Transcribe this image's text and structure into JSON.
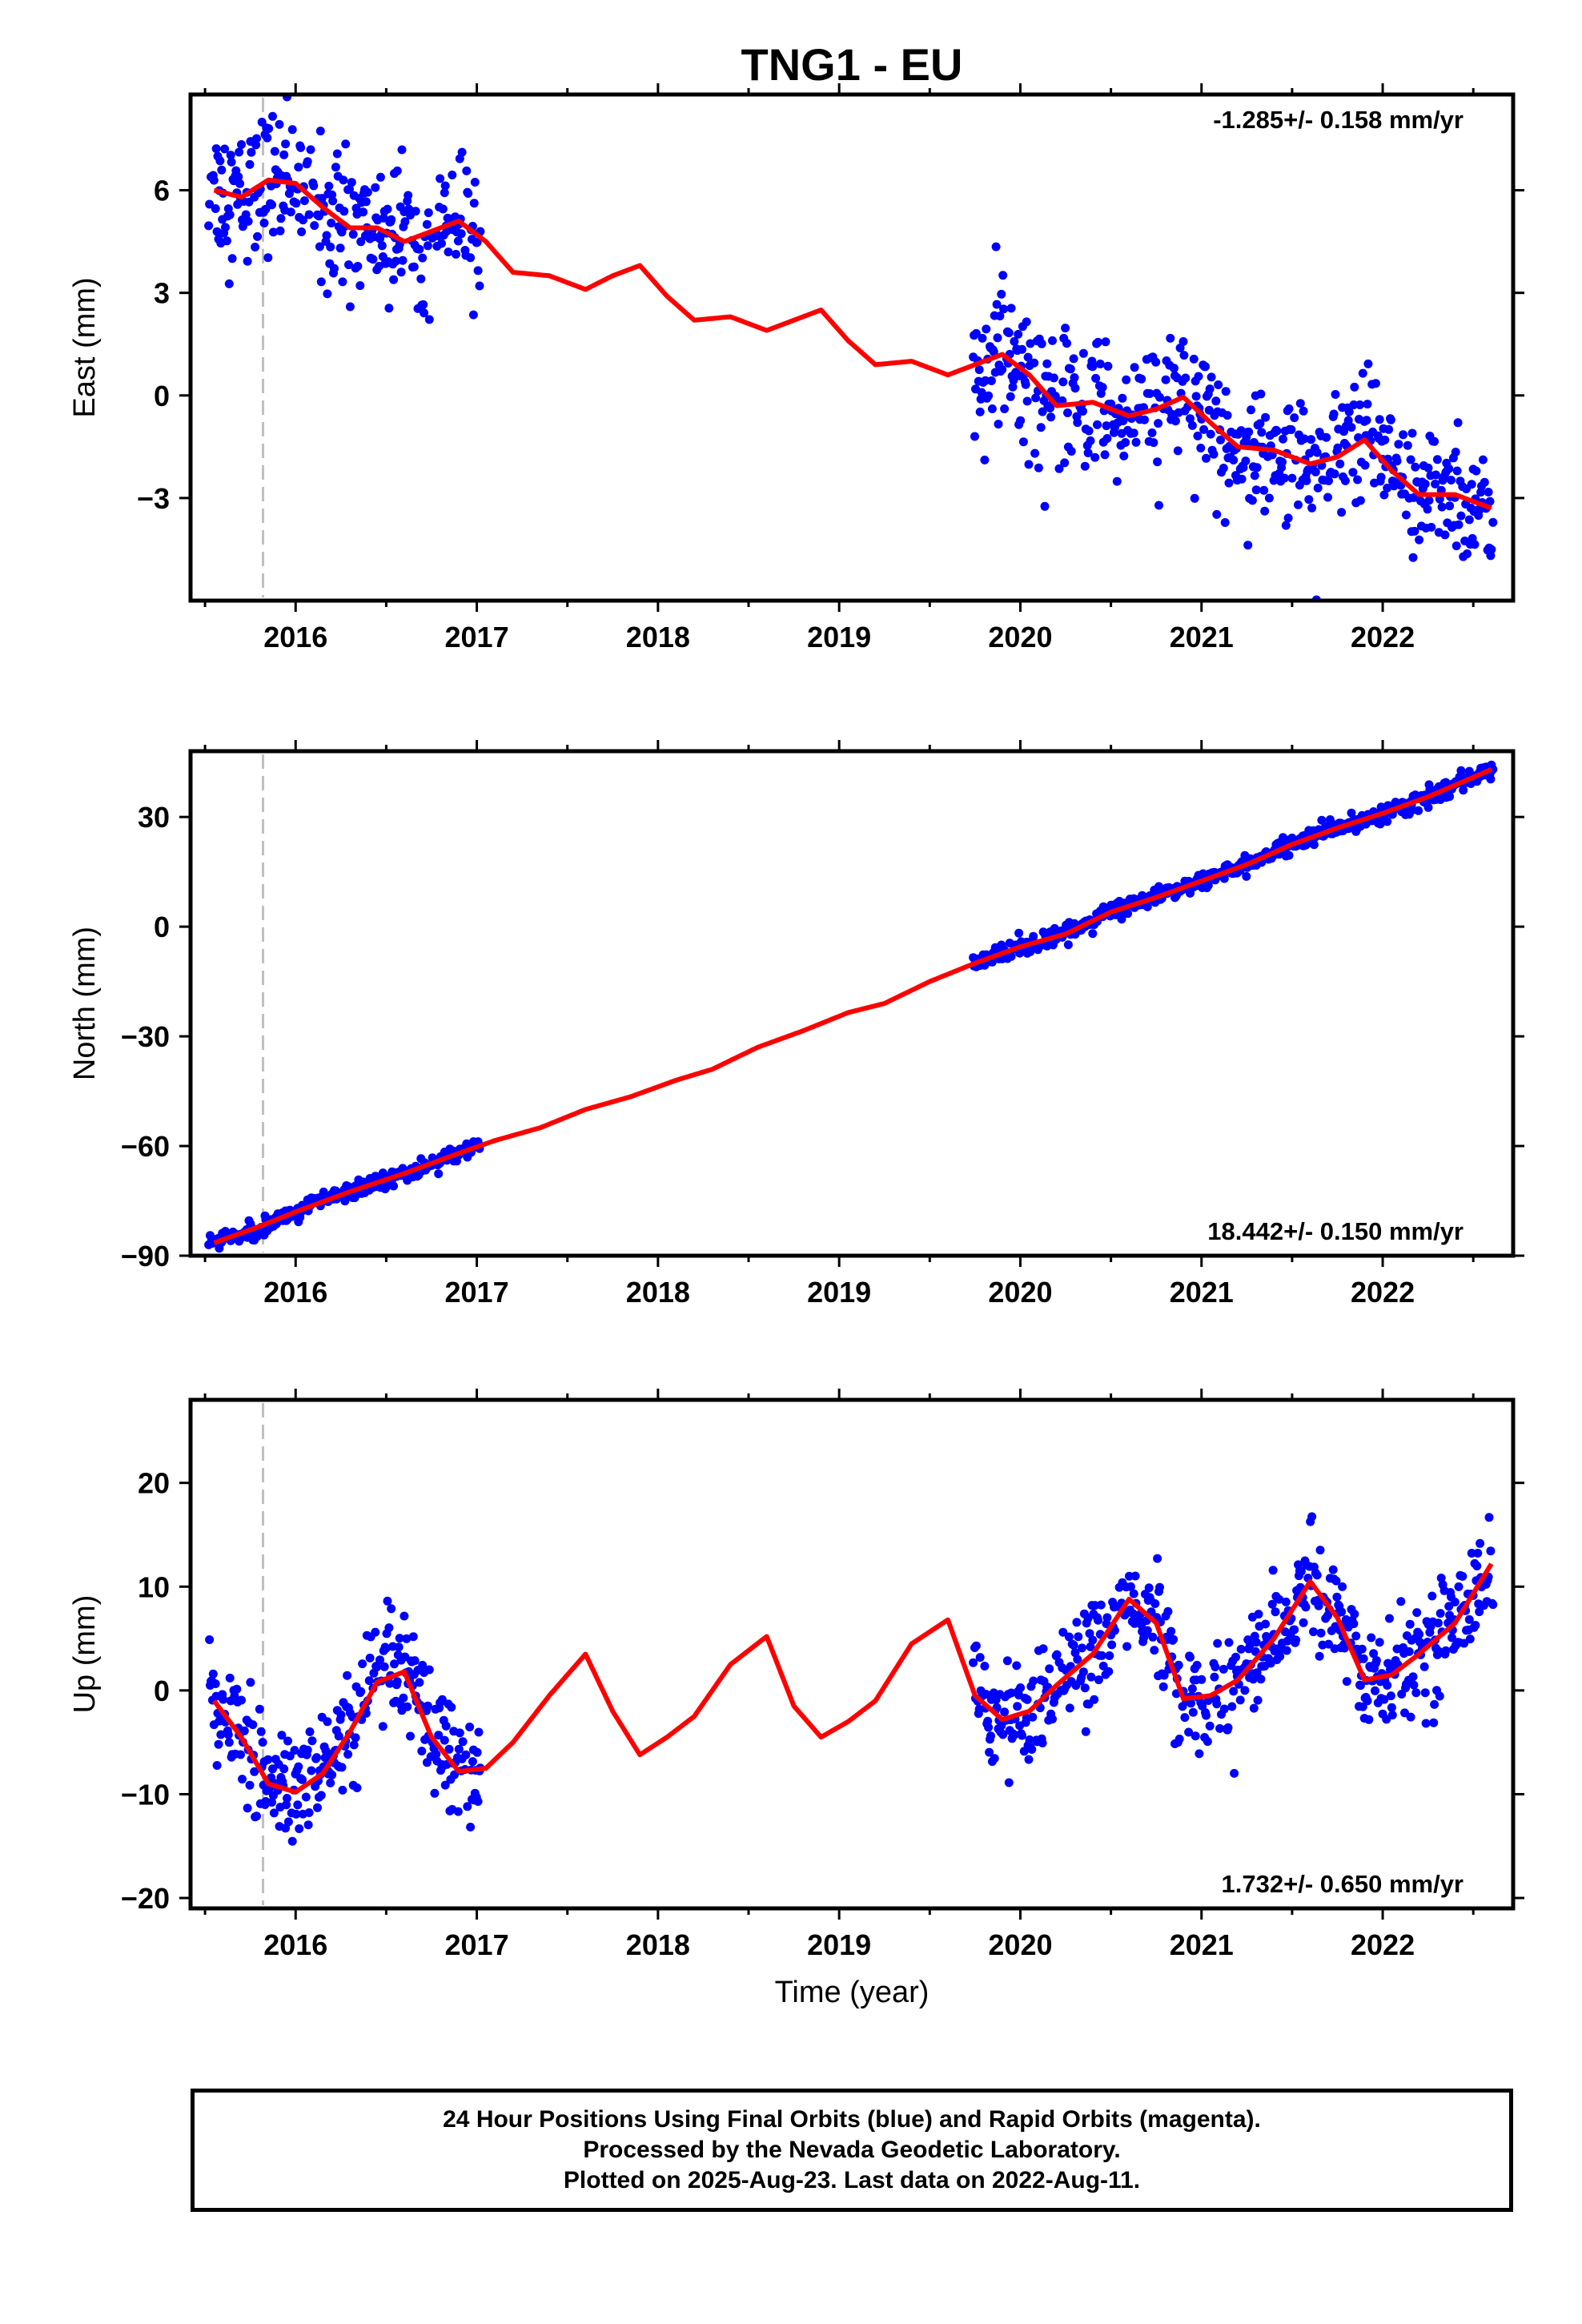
{
  "chart_data": {
    "title": "TNG1 - EU",
    "xlabel": "Time (year)",
    "type": "scatter",
    "xlim": [
      2015.42,
      2022.72
    ],
    "x_ticks": [
      2016,
      2017,
      2018,
      2019,
      2020,
      2021,
      2022
    ],
    "x_tick_labels": [
      "2016",
      "2017",
      "2018",
      "2019",
      "2020",
      "2021",
      "2022"
    ],
    "reference_line_year": 2015.82,
    "series_colors": {
      "positions": "#0000ff",
      "model": "#ff0000",
      "reference_line": "#c0c0c0"
    },
    "data_spans": [
      [
        2015.52,
        2017.02
      ],
      [
        2019.74,
        2022.61
      ]
    ],
    "panels": [
      {
        "ylabel": "East (mm)",
        "ylim": [
          -6,
          8.8
        ],
        "y_ticks": [
          -3,
          0,
          3,
          6
        ],
        "y_tick_labels": [
          "−3",
          "0",
          "3",
          "6"
        ],
        "rate_text": "-1.285+/- 0.158 mm/yr",
        "rate_position": "top-right",
        "rate_mm_per_yr": -1.285,
        "rate_sigma": 0.158,
        "model_curve": {
          "x": [
            2015.55,
            2015.7,
            2015.85,
            2016.0,
            2016.15,
            2016.3,
            2016.45,
            2016.6,
            2016.75,
            2016.9,
            2017.05,
            2017.2,
            2017.4,
            2017.6,
            2017.75,
            2017.9,
            2018.05,
            2018.2,
            2018.4,
            2018.6,
            2018.75,
            2018.9,
            2019.05,
            2019.2,
            2019.4,
            2019.6,
            2019.75,
            2019.9,
            2020.05,
            2020.2,
            2020.4,
            2020.6,
            2020.75,
            2020.9,
            2021.05,
            2021.2,
            2021.4,
            2021.6,
            2021.75,
            2021.9,
            2022.05,
            2022.2,
            2022.4,
            2022.6
          ],
          "y": [
            6.0,
            5.8,
            6.3,
            6.2,
            5.5,
            4.9,
            4.9,
            4.5,
            4.8,
            5.1,
            4.5,
            3.6,
            3.5,
            3.1,
            3.5,
            3.8,
            2.9,
            2.2,
            2.3,
            1.9,
            2.2,
            2.5,
            1.6,
            0.9,
            1.0,
            0.6,
            0.9,
            1.2,
            0.6,
            -0.3,
            -0.2,
            -0.6,
            -0.4,
            -0.05,
            -0.8,
            -1.5,
            -1.6,
            -2.0,
            -1.8,
            -1.3,
            -2.2,
            -2.9,
            -2.9,
            -3.3
          ]
        },
        "scatter_model": {
          "noise_sd": 1.0
        }
      },
      {
        "ylabel": "North (mm)",
        "ylim": [
          -90,
          48
        ],
        "y_ticks": [
          -90,
          -60,
          -30,
          0,
          30
        ],
        "y_tick_labels": [
          "−90",
          "−60",
          "−30",
          "0",
          "30"
        ],
        "rate_text": "18.442+/- 0.150 mm/yr",
        "rate_position": "bottom-right",
        "rate_mm_per_yr": 18.442,
        "rate_sigma": 0.15,
        "model_curve": {
          "x": [
            2015.55,
            2015.8,
            2016.0,
            2016.3,
            2016.6,
            2016.9,
            2017.1,
            2017.35,
            2017.6,
            2017.85,
            2018.1,
            2018.3,
            2018.55,
            2018.8,
            2019.05,
            2019.25,
            2019.5,
            2019.75,
            2020.0,
            2020.25,
            2020.5,
            2020.75,
            2021.0,
            2021.25,
            2021.5,
            2021.75,
            2022.0,
            2022.25,
            2022.6
          ],
          "y": [
            -86.5,
            -82.0,
            -78.0,
            -72.5,
            -67.5,
            -62.0,
            -58.5,
            -55.0,
            -50.0,
            -46.5,
            -42.0,
            -39.0,
            -33.0,
            -28.5,
            -23.5,
            -21.0,
            -15.0,
            -10.0,
            -5.5,
            -2.0,
            4.0,
            8.0,
            12.5,
            17.0,
            22.5,
            27.0,
            31.0,
            35.5,
            43.0
          ]
        },
        "scatter_model": {
          "noise_sd": 1.1
        }
      },
      {
        "ylabel": "Up (mm)",
        "ylim": [
          -21,
          28
        ],
        "y_ticks": [
          -20,
          -10,
          0,
          10,
          20
        ],
        "y_tick_labels": [
          "−20",
          "−10",
          "0",
          "10",
          "20"
        ],
        "rate_text": "1.732+/- 0.650 mm/yr",
        "rate_position": "bottom-right",
        "rate_mm_per_yr": 1.732,
        "rate_sigma": 0.65,
        "model_curve": {
          "x": [
            2015.55,
            2015.7,
            2015.85,
            2016.0,
            2016.15,
            2016.3,
            2016.45,
            2016.6,
            2016.75,
            2016.9,
            2017.05,
            2017.2,
            2017.4,
            2017.6,
            2017.75,
            2017.9,
            2018.05,
            2018.2,
            2018.4,
            2018.6,
            2018.75,
            2018.9,
            2019.05,
            2019.2,
            2019.4,
            2019.6,
            2019.75,
            2019.9,
            2020.05,
            2020.2,
            2020.4,
            2020.6,
            2020.75,
            2020.9,
            2021.05,
            2021.2,
            2021.4,
            2021.6,
            2021.75,
            2021.9,
            2022.05,
            2022.2,
            2022.4,
            2022.6
          ],
          "y": [
            -1.0,
            -4.5,
            -9.0,
            -9.8,
            -8.0,
            -4.0,
            0.8,
            1.8,
            -4.5,
            -7.8,
            -7.5,
            -5.0,
            -0.5,
            3.5,
            -2.0,
            -6.2,
            -4.5,
            -2.5,
            2.5,
            5.2,
            -1.5,
            -4.5,
            -3.0,
            -1.0,
            4.5,
            6.8,
            -0.5,
            -2.8,
            -2.0,
            0.5,
            3.5,
            8.8,
            6.5,
            -0.8,
            -0.5,
            1.0,
            5.0,
            10.5,
            7.0,
            1.0,
            1.5,
            3.5,
            6.5,
            12.2
          ]
        },
        "scatter_model": {
          "noise_sd": 2.6
        }
      }
    ]
  },
  "footer": {
    "line1": "24 Hour Positions Using Final Orbits (blue) and Rapid Orbits (magenta).",
    "line2": "Processed by the Nevada Geodetic Laboratory.",
    "line3": "Plotted on 2025-Aug-23. Last data on 2022-Aug-11."
  }
}
